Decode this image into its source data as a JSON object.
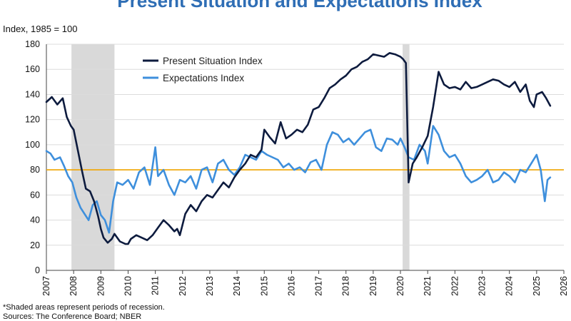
{
  "chart_data": {
    "type": "line",
    "title": "Present Situation and Expectations Index",
    "ylabel": "Index, 1985 = 100",
    "xlabel": "",
    "xlim": [
      2007,
      2026
    ],
    "ylim": [
      0,
      180
    ],
    "yticks": [
      0,
      20,
      40,
      60,
      80,
      100,
      120,
      140,
      160,
      180
    ],
    "xticks": [
      2007,
      2008,
      2009,
      2010,
      2011,
      2012,
      2013,
      2014,
      2015,
      2016,
      2017,
      2018,
      2019,
      2020,
      2021,
      2022,
      2023,
      2024,
      2025,
      2026
    ],
    "grid": "horizontal",
    "legend_position": "top-left",
    "reference_line": {
      "value": 80,
      "color": "#f0a500"
    },
    "recessions": [
      [
        2007.92,
        2009.5
      ],
      [
        2020.08,
        2020.33
      ]
    ],
    "series": [
      {
        "name": "Present Situation Index",
        "color": "#0d1b3e",
        "x": [
          2007.0,
          2007.2,
          2007.4,
          2007.6,
          2007.75,
          2007.9,
          2008.0,
          2008.15,
          2008.3,
          2008.45,
          2008.6,
          2008.75,
          2008.9,
          2009.0,
          2009.1,
          2009.25,
          2009.4,
          2009.5,
          2009.7,
          2009.9,
          2010.0,
          2010.1,
          2010.3,
          2010.5,
          2010.7,
          2010.9,
          2011.1,
          2011.3,
          2011.5,
          2011.7,
          2011.8,
          2011.9,
          2012.1,
          2012.3,
          2012.5,
          2012.7,
          2012.9,
          2013.1,
          2013.3,
          2013.5,
          2013.7,
          2013.9,
          2014.1,
          2014.3,
          2014.5,
          2014.7,
          2014.9,
          2015.0,
          2015.2,
          2015.4,
          2015.6,
          2015.8,
          2016.0,
          2016.2,
          2016.4,
          2016.6,
          2016.8,
          2017.0,
          2017.2,
          2017.4,
          2017.6,
          2017.8,
          2018.0,
          2018.2,
          2018.4,
          2018.6,
          2018.8,
          2019.0,
          2019.2,
          2019.4,
          2019.6,
          2019.8,
          2020.0,
          2020.1,
          2020.2,
          2020.3,
          2020.45,
          2020.6,
          2020.8,
          2021.0,
          2021.2,
          2021.4,
          2021.6,
          2021.8,
          2022.0,
          2022.2,
          2022.4,
          2022.6,
          2022.8,
          2023.0,
          2023.2,
          2023.4,
          2023.6,
          2023.8,
          2024.0,
          2024.2,
          2024.4,
          2024.6,
          2024.75,
          2024.9,
          2025.0,
          2025.2,
          2025.35,
          2025.5
        ],
        "values": [
          134,
          138,
          132,
          137,
          122,
          115,
          112,
          96,
          80,
          65,
          63,
          55,
          43,
          33,
          26,
          22,
          25,
          29,
          23,
          21,
          21,
          25,
          28,
          26,
          24,
          28,
          34,
          40,
          36,
          31,
          33,
          28,
          45,
          52,
          47,
          55,
          60,
          58,
          64,
          70,
          66,
          74,
          80,
          85,
          92,
          90,
          96,
          112,
          106,
          101,
          118,
          105,
          108,
          112,
          110,
          116,
          128,
          130,
          137,
          145,
          148,
          152,
          155,
          160,
          162,
          166,
          168,
          172,
          171,
          170,
          173,
          172,
          170,
          168,
          165,
          70,
          85,
          90,
          98,
          107,
          130,
          158,
          148,
          145,
          146,
          144,
          150,
          145,
          146,
          148,
          150,
          152,
          151,
          148,
          146,
          150,
          142,
          148,
          135,
          130,
          140,
          142,
          137,
          131
        ]
      },
      {
        "name": "Expectations Index",
        "color": "#3e8fdc",
        "x": [
          2007.0,
          2007.15,
          2007.3,
          2007.5,
          2007.65,
          2007.8,
          2007.95,
          2008.1,
          2008.25,
          2008.4,
          2008.55,
          2008.7,
          2008.85,
          2009.0,
          2009.15,
          2009.3,
          2009.45,
          2009.6,
          2009.8,
          2010.0,
          2010.2,
          2010.4,
          2010.6,
          2010.8,
          2011.0,
          2011.1,
          2011.3,
          2011.5,
          2011.7,
          2011.9,
          2012.1,
          2012.3,
          2012.5,
          2012.7,
          2012.9,
          2013.1,
          2013.3,
          2013.5,
          2013.7,
          2013.9,
          2014.1,
          2014.3,
          2014.5,
          2014.7,
          2014.9,
          2015.1,
          2015.3,
          2015.5,
          2015.7,
          2015.9,
          2016.1,
          2016.3,
          2016.5,
          2016.7,
          2016.9,
          2017.1,
          2017.3,
          2017.5,
          2017.7,
          2017.9,
          2018.1,
          2018.3,
          2018.5,
          2018.7,
          2018.9,
          2019.1,
          2019.3,
          2019.5,
          2019.7,
          2019.9,
          2020.0,
          2020.15,
          2020.3,
          2020.5,
          2020.7,
          2020.9,
          2021.0,
          2021.2,
          2021.4,
          2021.6,
          2021.8,
          2022.0,
          2022.2,
          2022.4,
          2022.6,
          2022.8,
          2023.0,
          2023.2,
          2023.4,
          2023.6,
          2023.8,
          2024.0,
          2024.2,
          2024.4,
          2024.6,
          2024.8,
          2025.0,
          2025.15,
          2025.3,
          2025.4,
          2025.5
        ],
        "values": [
          95,
          93,
          88,
          90,
          83,
          75,
          70,
          58,
          50,
          45,
          40,
          52,
          55,
          44,
          40,
          30,
          55,
          70,
          68,
          72,
          65,
          78,
          82,
          68,
          98,
          75,
          80,
          68,
          60,
          72,
          70,
          75,
          65,
          80,
          82,
          70,
          85,
          88,
          80,
          76,
          82,
          92,
          90,
          88,
          95,
          92,
          90,
          88,
          82,
          85,
          80,
          82,
          78,
          86,
          88,
          80,
          100,
          110,
          108,
          102,
          105,
          100,
          105,
          110,
          112,
          98,
          95,
          105,
          104,
          100,
          105,
          98,
          90,
          88,
          100,
          95,
          85,
          115,
          108,
          95,
          90,
          92,
          85,
          75,
          70,
          72,
          75,
          80,
          70,
          72,
          78,
          75,
          70,
          80,
          78,
          85,
          92,
          80,
          55,
          72,
          74
        ]
      }
    ],
    "notes": [
      "*Shaded areas represent periods of recession.",
      "Sources: The Conference Board; NBER"
    ]
  }
}
